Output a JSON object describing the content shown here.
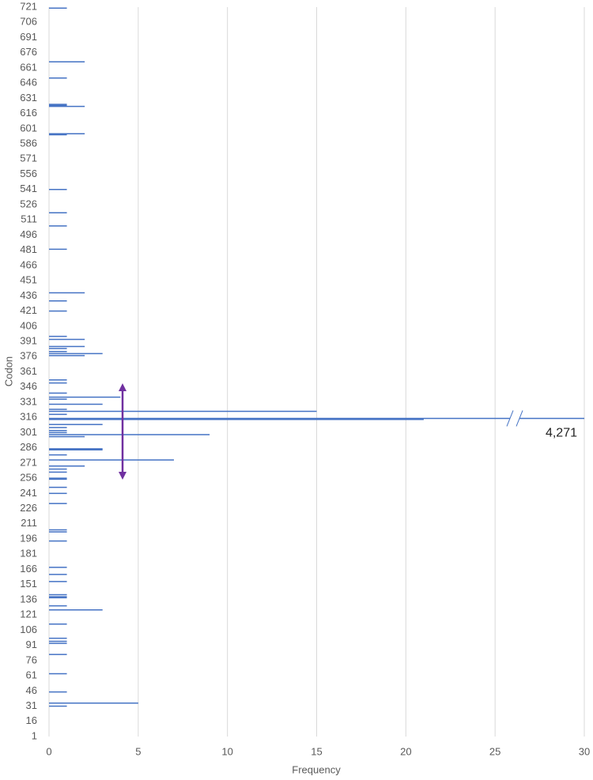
{
  "chart_data": {
    "type": "hbar",
    "xlabel": "Frequency",
    "ylabel": "Codon",
    "categories": [
      720,
      667,
      651,
      625,
      624,
      623,
      596,
      595,
      541,
      518,
      505,
      482,
      439,
      431,
      421,
      396,
      393,
      386,
      384,
      381,
      379,
      377,
      353,
      350,
      340,
      336,
      334,
      329,
      324,
      322,
      319,
      315,
      314,
      309,
      306,
      303,
      301,
      299,
      297,
      285,
      284,
      279,
      274,
      268,
      265,
      262,
      256,
      255,
      247,
      241,
      231,
      205,
      203,
      194,
      168,
      161,
      154,
      141,
      139,
      138,
      130,
      126,
      112,
      98,
      95,
      93,
      82,
      63,
      45,
      34,
      31
    ],
    "values": [
      1,
      2,
      1,
      1,
      1,
      2,
      2,
      1,
      1,
      1,
      1,
      1,
      2,
      1,
      1,
      1,
      2,
      2,
      1,
      1,
      3,
      2,
      1,
      1,
      1,
      4,
      1,
      3,
      1,
      15,
      1,
      4271,
      21,
      3,
      1,
      1,
      1,
      9,
      2,
      3,
      3,
      1,
      7,
      2,
      1,
      1,
      1,
      1,
      1,
      1,
      1,
      1,
      1,
      1,
      1,
      1,
      1,
      1,
      1,
      1,
      1,
      3,
      1,
      1,
      1,
      1,
      1,
      1,
      1,
      5,
      1
    ],
    "value_labels": [
      null,
      null,
      null,
      null,
      null,
      null,
      null,
      null,
      null,
      null,
      null,
      null,
      null,
      null,
      null,
      null,
      null,
      null,
      null,
      null,
      null,
      null,
      null,
      null,
      null,
      null,
      null,
      null,
      null,
      null,
      null,
      "4,271",
      null,
      null,
      null,
      null,
      null,
      null,
      null,
      null,
      null,
      null,
      null,
      null,
      null,
      null,
      null,
      null,
      null,
      null,
      null,
      null,
      null,
      null,
      null,
      null,
      null,
      null,
      null,
      null,
      null,
      null,
      null,
      null,
      null,
      null,
      null,
      null,
      null,
      null,
      null
    ],
    "color": "#4472c4",
    "xlim": [
      0,
      30
    ],
    "xticks": [
      0,
      5,
      10,
      15,
      20,
      25,
      30
    ],
    "ylim": [
      1,
      721
    ],
    "yticks": [
      1,
      16,
      31,
      46,
      61,
      76,
      91,
      106,
      121,
      136,
      151,
      166,
      181,
      196,
      211,
      226,
      241,
      256,
      271,
      286,
      301,
      316,
      331,
      346,
      361,
      376,
      391,
      406,
      421,
      436,
      451,
      466,
      481,
      496,
      511,
      526,
      541,
      556,
      571,
      586,
      601,
      616,
      631,
      646,
      661,
      676,
      691,
      706,
      721
    ],
    "grid": true
  }
}
